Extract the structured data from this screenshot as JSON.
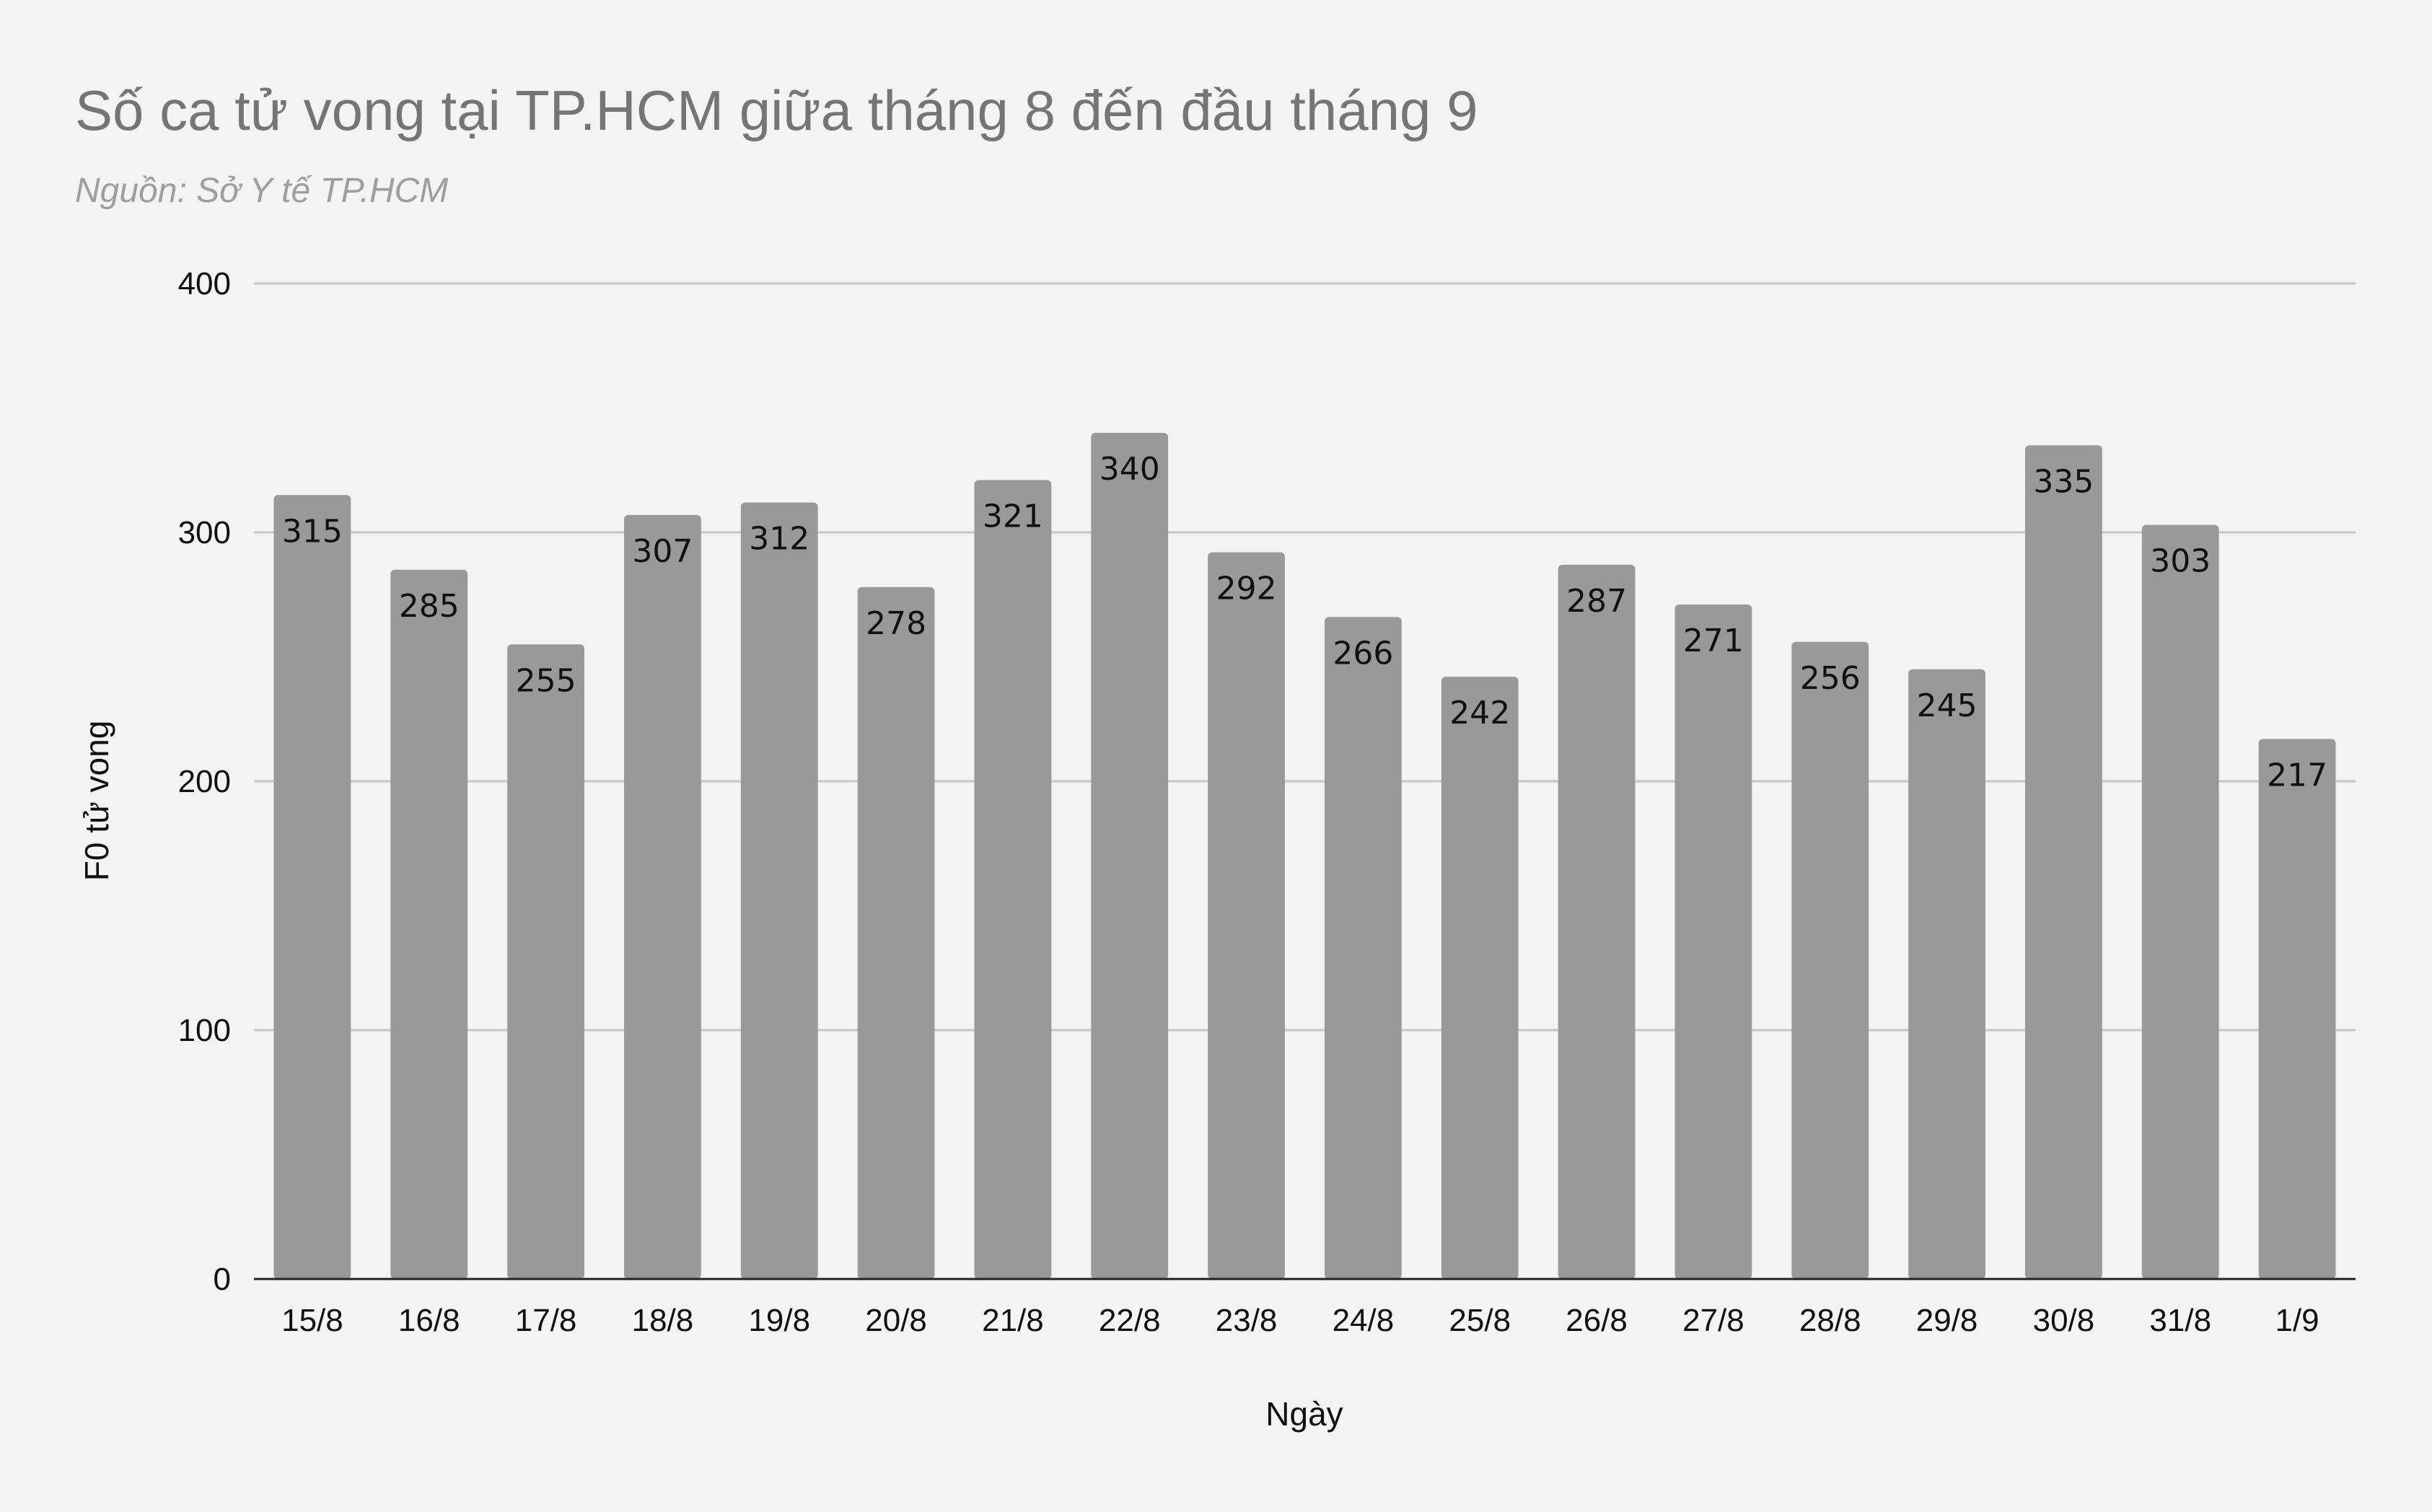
{
  "chart_data": {
    "type": "bar",
    "title": "Số ca tử vong tại TP.HCM giữa tháng 8 đến đầu tháng 9",
    "subtitle": "Nguồn: Sở Y tế TP.HCM",
    "xlabel": "Ngày",
    "ylabel": "F0 tử vong",
    "categories": [
      "15/8",
      "16/8",
      "17/8",
      "18/8",
      "19/8",
      "20/8",
      "21/8",
      "22/8",
      "23/8",
      "24/8",
      "25/8",
      "26/8",
      "27/8",
      "28/8",
      "29/8",
      "30/8",
      "31/8",
      "1/9"
    ],
    "values": [
      315,
      285,
      255,
      307,
      312,
      278,
      321,
      340,
      292,
      266,
      242,
      287,
      271,
      256,
      245,
      335,
      303,
      217
    ],
    "ylim": [
      0,
      400
    ],
    "yticks": [
      0,
      100,
      200,
      300,
      400
    ],
    "grid": true,
    "legend": "none",
    "colors": {
      "bar": "#999999",
      "background": "#f3f3f3",
      "gridline": "#c6c6c6",
      "baseline": "#222222"
    }
  }
}
